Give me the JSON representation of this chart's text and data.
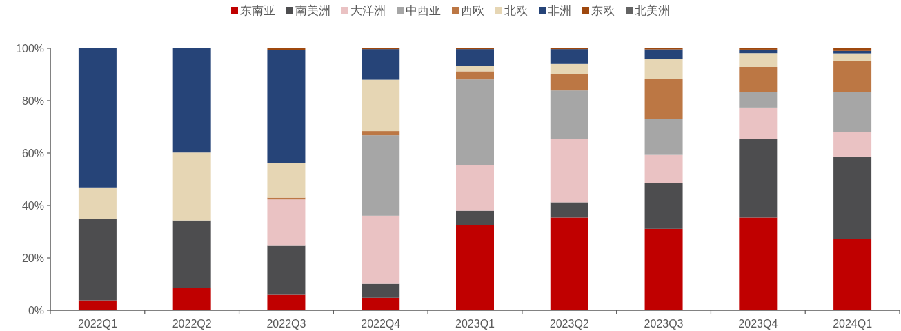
{
  "chart_data": {
    "type": "bar",
    "stacked": true,
    "legend": "top",
    "grid": false,
    "categories": [
      "2022Q1",
      "2022Q2",
      "2022Q3",
      "2022Q4",
      "2023Q1",
      "2023Q2",
      "2023Q3",
      "2023Q4",
      "2024Q1"
    ],
    "ylim": [
      0,
      100
    ],
    "yticks": [
      {
        "value": 0,
        "label": "0%"
      },
      {
        "value": 20,
        "label": "20%"
      },
      {
        "value": 40,
        "label": "40%"
      },
      {
        "value": 60,
        "label": "60%"
      },
      {
        "value": 80,
        "label": "80%"
      },
      {
        "value": 100,
        "label": "100%"
      }
    ],
    "series": [
      {
        "name": "东南亚",
        "color": "#c00000",
        "values": [
          3.8,
          8.5,
          5.9,
          4.8,
          32.6,
          35.4,
          31.1,
          35.4,
          27.2
        ]
      },
      {
        "name": "南美洲",
        "color": "#4d4d4f",
        "values": [
          31.2,
          25.8,
          18.7,
          5.3,
          5.4,
          5.8,
          17.4,
          30.0,
          31.5
        ]
      },
      {
        "name": "大洋洲",
        "color": "#eac2c3",
        "values": [
          0,
          0,
          17.7,
          26.0,
          17.3,
          24.2,
          10.8,
          12.0,
          9.2
        ]
      },
      {
        "name": "中西亚",
        "color": "#a6a6a6",
        "values": [
          0,
          0,
          0,
          30.7,
          32.8,
          18.5,
          13.8,
          5.9,
          15.4
        ]
      },
      {
        "name": "西欧",
        "color": "#bc7744",
        "values": [
          0,
          0,
          0.7,
          1.6,
          3.1,
          6.2,
          15.1,
          9.6,
          11.8
        ]
      },
      {
        "name": "北欧",
        "color": "#e6d6b4",
        "values": [
          11.9,
          25.9,
          13.2,
          19.6,
          2.0,
          3.9,
          7.7,
          5.2,
          2.9
        ]
      },
      {
        "name": "非洲",
        "color": "#264478",
        "values": [
          53.1,
          39.8,
          43.2,
          11.7,
          6.5,
          5.7,
          3.7,
          1.4,
          1.0
        ]
      },
      {
        "name": "东欧",
        "color": "#9e480e",
        "values": [
          0,
          0,
          0.6,
          0.3,
          0.3,
          0.3,
          0.4,
          0.5,
          1.0
        ]
      },
      {
        "name": "北美洲",
        "color": "#636363",
        "values": [
          0,
          0,
          0,
          0,
          0,
          0,
          0,
          0,
          0
        ]
      }
    ]
  }
}
